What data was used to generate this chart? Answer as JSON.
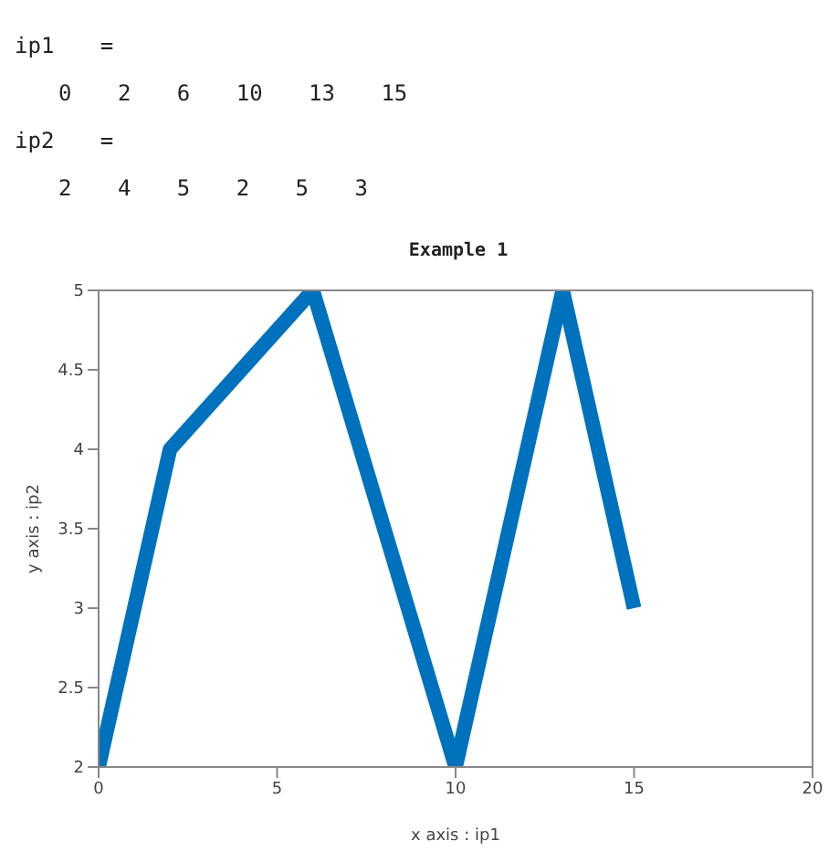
{
  "chart_data": {
    "type": "line",
    "title": "Example 1",
    "xlabel": "x axis : ip1",
    "ylabel": "y axis : ip2",
    "annotations": [
      "ip1 =",
      "0 2 6 10 13 15",
      "ip2 =",
      "2 4 5 2 5 3"
    ],
    "x": [
      0,
      2,
      6,
      10,
      13,
      15
    ],
    "series": [
      {
        "color": "#0072bd",
        "values": [
          2,
          4,
          5,
          2,
          5,
          3
        ]
      }
    ],
    "xlim": [
      0,
      20
    ],
    "xticks": [
      0,
      5,
      10,
      15,
      20
    ],
    "ylim": [
      2,
      5
    ],
    "yticks": [
      2,
      2.5,
      3,
      3.5,
      4,
      4.5,
      5
    ],
    "marker": "none",
    "line_style": "solid"
  }
}
